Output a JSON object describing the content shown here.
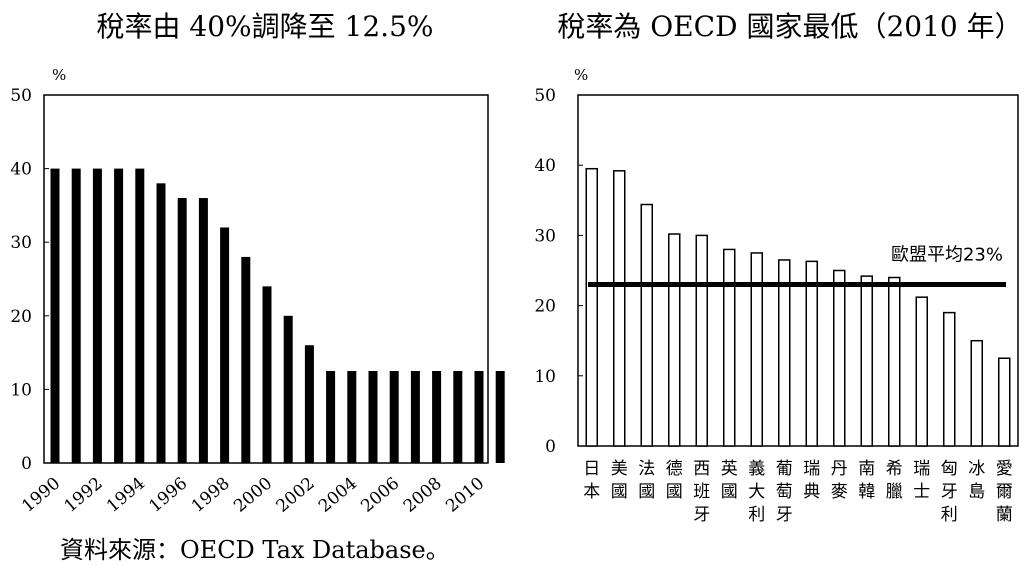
{
  "source_note": "資料來源：OECD Tax Database。",
  "chart_data": [
    {
      "type": "bar",
      "title": "稅率由 40%調降至 12.5%",
      "ylabel": "%",
      "ylim": [
        0,
        50
      ],
      "yticks": [
        0,
        10,
        20,
        30,
        40,
        50
      ],
      "x_tick_labels": [
        "1990",
        "1992",
        "1994",
        "1996",
        "1998",
        "2000",
        "2002",
        "2004",
        "2006",
        "2008",
        "2010"
      ],
      "categories": [
        "1990",
        "1991",
        "1992",
        "1993",
        "1994",
        "1995",
        "1996",
        "1997",
        "1998",
        "1999",
        "2000",
        "2001",
        "2002",
        "2003",
        "2004",
        "2005",
        "2006",
        "2007",
        "2008",
        "2009",
        "2010",
        "2011"
      ],
      "values": [
        40,
        40,
        40,
        40,
        40,
        38,
        36,
        36,
        32,
        28,
        24,
        20,
        16,
        12.5,
        12.5,
        12.5,
        12.5,
        12.5,
        12.5,
        12.5,
        12.5,
        12.5
      ],
      "bar_color": "#000000"
    },
    {
      "type": "bar",
      "title": "稅率為 OECD 國家最低（2010 年）",
      "ylabel": "%",
      "ylim": [
        0,
        50
      ],
      "yticks": [
        0,
        10,
        20,
        30,
        40,
        50
      ],
      "categories": [
        "日本",
        "美國",
        "法國",
        "德國",
        "西班牙",
        "英國",
        "義大利",
        "葡萄牙",
        "瑞典",
        "丹麥",
        "南韓",
        "希臘",
        "瑞士",
        "匈牙利",
        "冰島",
        "愛爾蘭"
      ],
      "values": [
        39.5,
        39.2,
        34.4,
        30.2,
        30,
        28,
        27.5,
        26.5,
        26.3,
        25,
        24.2,
        24,
        21.2,
        19,
        15,
        12.5
      ],
      "bar_fill": "#ffffff",
      "bar_stroke": "#000000",
      "reference_line": {
        "label": "歐盟平均23%",
        "value": 23
      }
    }
  ]
}
